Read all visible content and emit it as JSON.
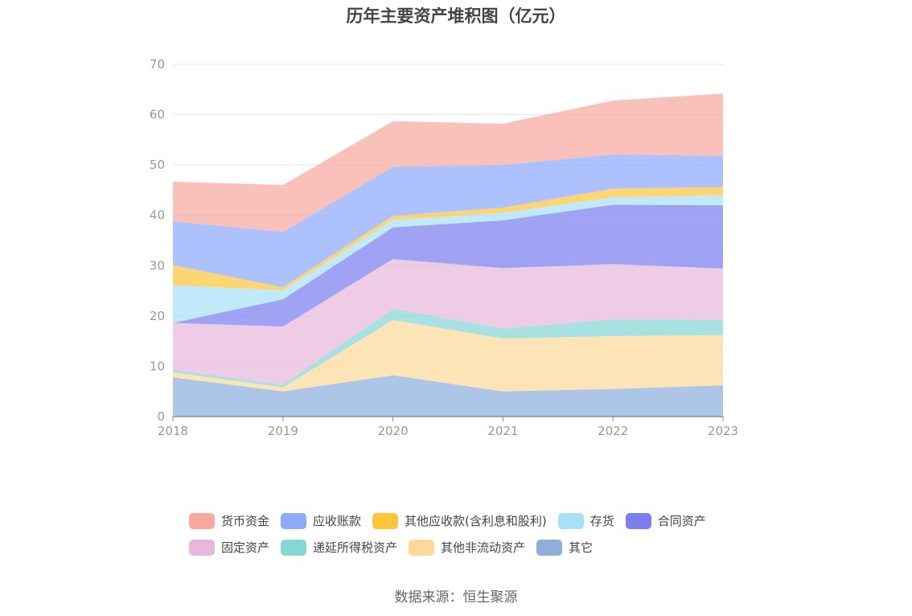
{
  "chart_data": {
    "type": "area",
    "stacked": true,
    "title": "历年主要资产堆积图（亿元）",
    "source": "数据来源：恒生聚源",
    "xlabel": "",
    "ylabel": "",
    "ylim": [
      0,
      70
    ],
    "yticks": [
      0,
      10,
      20,
      30,
      40,
      50,
      60,
      70
    ],
    "categories": [
      "2018",
      "2019",
      "2020",
      "2021",
      "2022",
      "2023"
    ],
    "legend_position": "bottom",
    "grid": true,
    "series": [
      {
        "name": "其它",
        "color": "#8eaedc",
        "values": [
          7.8,
          5.0,
          8.2,
          5.0,
          5.5,
          6.2
        ]
      },
      {
        "name": "其他非流动资产",
        "color": "#fcd99a",
        "values": [
          1.0,
          0.8,
          11.0,
          10.5,
          10.5,
          10.0
        ]
      },
      {
        "name": "递延所得税资产",
        "color": "#86d6d6",
        "values": [
          0.5,
          0.5,
          2.2,
          2.0,
          3.3,
          3.0
        ]
      },
      {
        "name": "固定资产",
        "color": "#e8b8dc",
        "values": [
          9.3,
          11.6,
          9.9,
          12.0,
          11.0,
          10.2
        ]
      },
      {
        "name": "合同资产",
        "color": "#7b7ff0",
        "values": [
          0.0,
          5.4,
          6.3,
          9.5,
          11.8,
          12.6
        ]
      },
      {
        "name": "存货",
        "color": "#a8e0f8",
        "values": [
          7.5,
          1.8,
          1.5,
          1.5,
          1.5,
          2.0
        ]
      },
      {
        "name": "其他应收款(含利息和股利)",
        "color": "#fcc53c",
        "values": [
          4.0,
          0.6,
          0.8,
          1.0,
          1.7,
          1.6
        ]
      },
      {
        "name": "应收账款",
        "color": "#8daafc",
        "values": [
          8.7,
          11.0,
          9.7,
          8.5,
          6.8,
          6.2
        ]
      },
      {
        "name": "货币资金",
        "color": "#f8a8a0",
        "values": [
          7.9,
          9.3,
          9.1,
          8.2,
          10.7,
          12.4
        ]
      }
    ]
  },
  "legend_order": [
    [
      "货币资金",
      "应收账款",
      "其他应收款(含利息和股利)",
      "存货",
      "合同资产"
    ],
    [
      "固定资产",
      "递延所得税资产",
      "其他非流动资产",
      "其它"
    ]
  ],
  "legend_colors": {
    "货币资金": "#f8a8a0",
    "应收账款": "#8daafc",
    "其他应收款(含利息和股利)": "#fcc53c",
    "存货": "#a8e0f8",
    "合同资产": "#7b7ff0",
    "固定资产": "#e8b8dc",
    "递延所得税资产": "#86d6d6",
    "其他非流动资产": "#fcd99a",
    "其它": "#8eaedc"
  }
}
